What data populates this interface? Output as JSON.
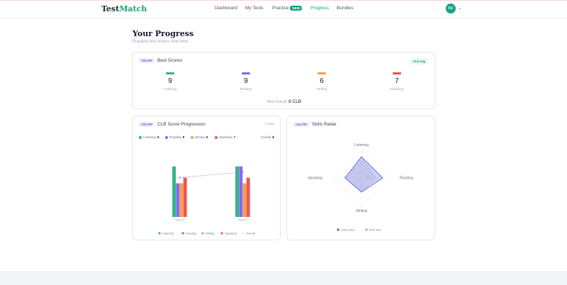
{
  "header": {
    "logo_main": "Test",
    "logo_accent": "Match",
    "nav": [
      {
        "label": "Dashboard"
      },
      {
        "label": "My Tests"
      },
      {
        "label": "Practice",
        "badge": "NEW"
      },
      {
        "label": "Progress"
      },
      {
        "label": "Bundles"
      }
    ],
    "avatar_initials": "KC"
  },
  "page": {
    "title": "Your Progress",
    "subtitle": "Practice test scores over time"
  },
  "best_scores": {
    "tag": "CELPIP",
    "title": "Best Scores",
    "avg_badge": "+0.8 avg",
    "skills": [
      {
        "label": "Listening",
        "value": "9",
        "color": "#34b38a"
      },
      {
        "label": "Reading",
        "value": "9",
        "color": "#7c6cf0"
      },
      {
        "label": "Writing",
        "value": "6",
        "color": "#f59e4b"
      },
      {
        "label": "Speaking",
        "value": "7",
        "color": "#ef5350"
      }
    ],
    "overall_label": "Best Overall",
    "overall_value": "8 CLB"
  },
  "progression": {
    "tag": "CELPIP",
    "title": "CLB Score Progression",
    "attempts": "2 tests",
    "legend_top": [
      {
        "label": "Listening",
        "value": "9"
      },
      {
        "label": "Reading",
        "value": "9"
      },
      {
        "label": "Writing",
        "value": "6"
      },
      {
        "label": "Speaking",
        "value": "7"
      }
    ],
    "overall_label": "Overall",
    "overall_value": "8",
    "legend_bottom": [
      "Listening",
      "Reading",
      "Writing",
      "Speaking",
      "Overall"
    ]
  },
  "radar": {
    "tag": "CELPIP",
    "title": "Skills Radar",
    "legend": [
      "Latest Test",
      "First Test"
    ]
  },
  "chart_data": [
    {
      "type": "bar",
      "categories": [
        "Test 1",
        "Test 2"
      ],
      "series": [
        {
          "name": "Listening",
          "values": [
            9,
            9
          ],
          "color": "#34b38a"
        },
        {
          "name": "Reading",
          "values": [
            6,
            9
          ],
          "color": "#7c6cf0"
        },
        {
          "name": "Writing",
          "values": [
            6,
            6
          ],
          "color": "#f59e4b"
        },
        {
          "name": "Speaking",
          "values": [
            7,
            7
          ],
          "color": "#ef5350"
        },
        {
          "name": "Overall",
          "values": [
            7,
            8
          ],
          "color": "#8b8fe8",
          "style": "dashed-line"
        }
      ],
      "ylim": [
        0,
        12
      ]
    },
    {
      "type": "radar",
      "axes": [
        "Listening",
        "Reading",
        "Writing",
        "Speaking"
      ],
      "series": [
        {
          "name": "Latest Test",
          "values": [
            9,
            9,
            6,
            7
          ],
          "color": "#4f5fd6"
        },
        {
          "name": "First Test",
          "values": [
            9,
            6,
            6,
            7
          ],
          "color": "#a5abb8"
        }
      ],
      "range": [
        0,
        12
      ]
    }
  ]
}
